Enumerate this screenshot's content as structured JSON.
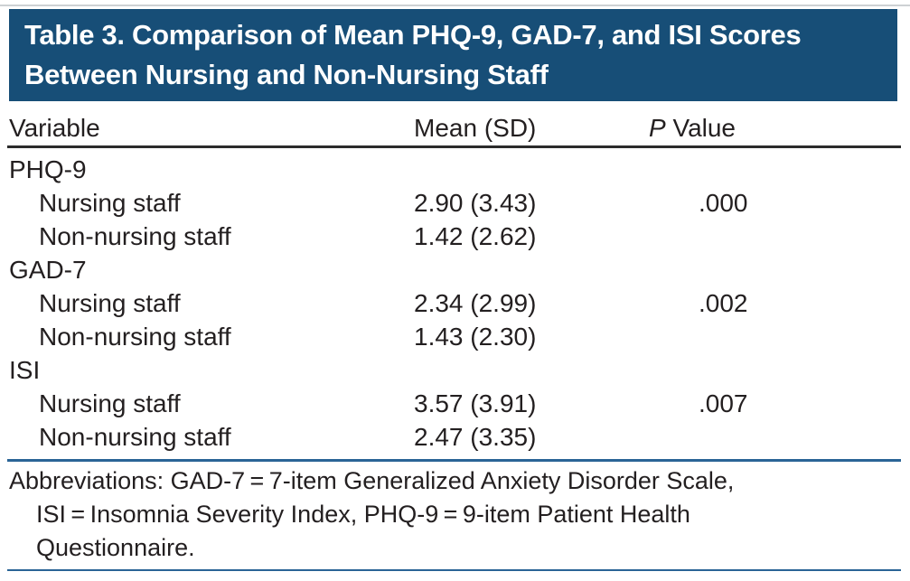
{
  "title": {
    "line1": "Table 3. Comparison of Mean PHQ-9, GAD-7, and ISI Scores",
    "line2": "Between Nursing and Non-Nursing Staff"
  },
  "table": {
    "columns": {
      "variable": "Variable",
      "mean_sd": "Mean (SD)",
      "p_italic": "P",
      "p_rest": " Value"
    },
    "rows": [
      {
        "label": "PHQ-9",
        "indent": 0,
        "mean": "",
        "p": ""
      },
      {
        "label": "Nursing staff",
        "indent": 1,
        "mean": "2.90 (3.43)",
        "p": ".000"
      },
      {
        "label": "Non-nursing staff",
        "indent": 1,
        "mean": "1.42 (2.62)",
        "p": ""
      },
      {
        "label": "GAD-7",
        "indent": 0,
        "mean": "",
        "p": ""
      },
      {
        "label": "Nursing staff",
        "indent": 1,
        "mean": "2.34 (2.99)",
        "p": ".002"
      },
      {
        "label": "Non-nursing staff",
        "indent": 1,
        "mean": "1.43 (2.30)",
        "p": ""
      },
      {
        "label": "ISI",
        "indent": 0,
        "mean": "",
        "p": ""
      },
      {
        "label": "Nursing staff",
        "indent": 1,
        "mean": "3.57 (3.91)",
        "p": ".007"
      },
      {
        "label": "Non-nursing staff",
        "indent": 1,
        "mean": "2.47 (3.35)",
        "p": ""
      }
    ]
  },
  "footnote": {
    "lines": [
      "Abbreviations: GAD-7 = 7-item Generalized Anxiety Disorder Scale,",
      "ISI = Insomnia Severity Index, PHQ-9 = 9-item Patient Health",
      "Questionnaire."
    ]
  },
  "colors": {
    "header_bg": "#174e77",
    "rule_blue": "#2a6496",
    "rule_dark": "#2b2b2b",
    "text": "#231f20",
    "top_hairline": "#cdd1d4"
  },
  "chart_data": {
    "type": "table",
    "title": "Table 3. Comparison of Mean PHQ-9, GAD-7, and ISI Scores Between Nursing and Non-Nursing Staff",
    "columns": [
      "Variable",
      "Mean (SD)",
      "P Value"
    ],
    "rows": [
      [
        "PHQ-9",
        "",
        ""
      ],
      [
        "Nursing staff",
        "2.90 (3.43)",
        ".000"
      ],
      [
        "Non-nursing staff",
        "1.42 (2.62)",
        ""
      ],
      [
        "GAD-7",
        "",
        ""
      ],
      [
        "Nursing staff",
        "2.34 (2.99)",
        ".002"
      ],
      [
        "Non-nursing staff",
        "1.43 (2.30)",
        ""
      ],
      [
        "ISI",
        "",
        ""
      ],
      [
        "Nursing staff",
        "3.57 (3.91)",
        ".007"
      ],
      [
        "Non-nursing staff",
        "2.47 (3.35)",
        ""
      ]
    ],
    "footnote": "Abbreviations: GAD-7 = 7-item Generalized Anxiety Disorder Scale, ISI = Insomnia Severity Index, PHQ-9 = 9-item Patient Health Questionnaire."
  }
}
